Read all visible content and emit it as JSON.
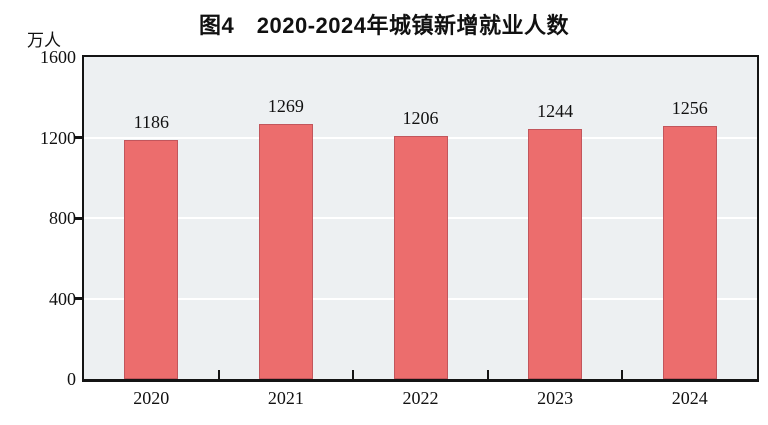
{
  "chart_data": {
    "type": "bar",
    "title": "图4　2020-2024年城镇新增就业人数",
    "unit_label": "万人",
    "categories": [
      "2020",
      "2021",
      "2022",
      "2023",
      "2024"
    ],
    "values": [
      1186,
      1269,
      1206,
      1244,
      1256
    ],
    "ylim": [
      0,
      1600
    ],
    "yticks": [
      0,
      400,
      800,
      1200,
      1600
    ],
    "grid": true,
    "legend": "none",
    "colors": {
      "bar_fill": "#ec6d6d",
      "bar_border": "#c2565c",
      "plot_background": "#edf0f2",
      "gridline": "#ffffff",
      "axis": "#141414",
      "text": "#111111",
      "page_background": "#ffffff"
    }
  }
}
